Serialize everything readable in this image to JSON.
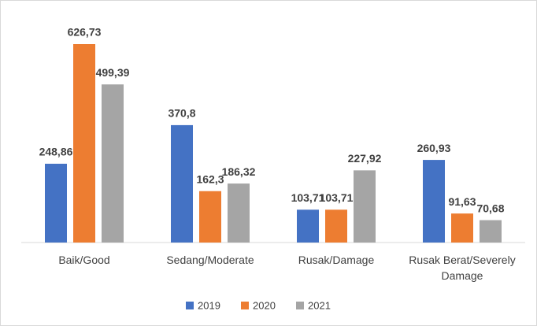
{
  "chart_data": {
    "type": "bar",
    "categories": [
      "Baik/Good",
      "Sedang/Moderate",
      "Rusak/Damage",
      "Rusak Berat/Severely Damage"
    ],
    "series": [
      {
        "name": "2019",
        "color": "#4472c4",
        "values": [
          248.86,
          370.8,
          103.71,
          260.93
        ],
        "value_labels": [
          "248,86",
          "370,8",
          "103,71",
          "260,93"
        ]
      },
      {
        "name": "2020",
        "color": "#ed7d31",
        "values": [
          626.73,
          162.3,
          103.71,
          91.63
        ],
        "value_labels": [
          "626,73",
          "162,3",
          "103,71",
          "91,63"
        ]
      },
      {
        "name": "2021",
        "color": "#a5a5a5",
        "values": [
          499.39,
          186.32,
          227.92,
          70.68
        ],
        "value_labels": [
          "499,39",
          "186,32",
          "227,92",
          "70,68"
        ]
      }
    ],
    "legend": "bottom"
  }
}
